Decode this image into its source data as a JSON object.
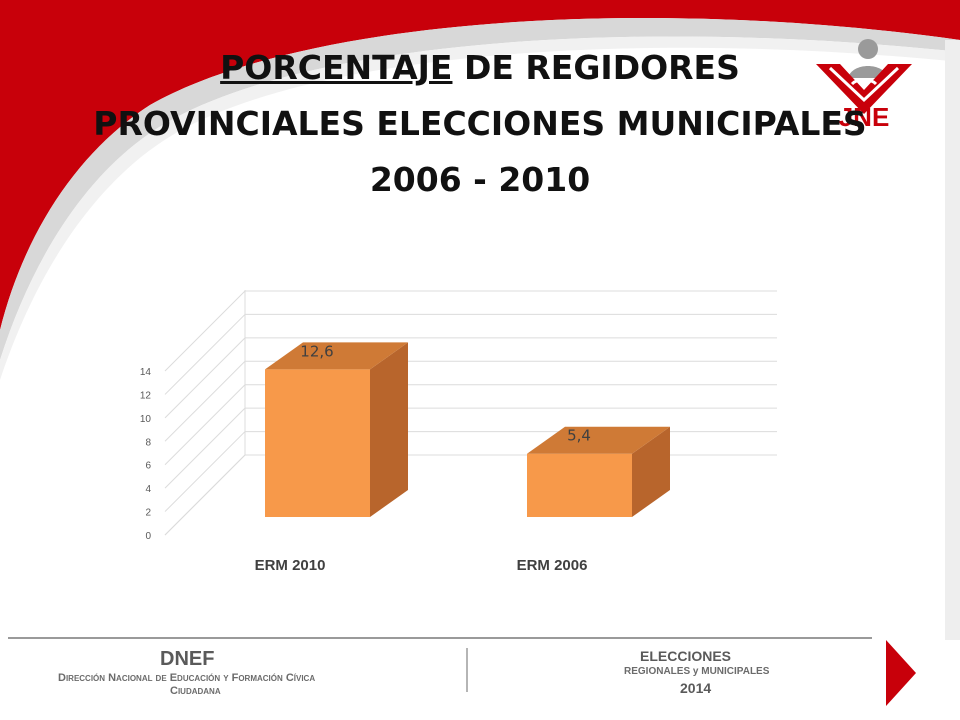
{
  "title": {
    "underlined": "PORCENTAJE",
    "line1_rest": " DE REGIDORES",
    "line2": "PROVINCIALES ELECCIONES MUNICIPALES",
    "line3": "2006 - 2010"
  },
  "logo": {
    "icon": "jne-logo",
    "text": "JNE"
  },
  "colors": {
    "banner_red": "#c8000a",
    "bar_front": "#f7994a",
    "bar_side": "#b8652c",
    "bar_top": "#cf7a36"
  },
  "chart_data": {
    "type": "bar",
    "style": "3d",
    "categories": [
      "ERM 2010",
      "ERM 2006"
    ],
    "values": [
      12.6,
      5.4
    ],
    "data_labels": [
      "12,6",
      "5,4"
    ],
    "title": "",
    "xlabel": "",
    "ylabel": "",
    "ylim": [
      0,
      14
    ],
    "yticks": [
      0,
      2,
      4,
      6,
      8,
      10,
      12,
      14
    ],
    "grid": true,
    "legend": "none"
  },
  "footer": {
    "org": "DNEF",
    "org_name_line1": "Dirección Nacional de Educación y Formación Cívica",
    "org_name_line2": "Ciudadana",
    "event_line1": "ELECCIONES",
    "event_line2": "REGIONALES y MUNICIPALES",
    "event_line3": "2014"
  }
}
